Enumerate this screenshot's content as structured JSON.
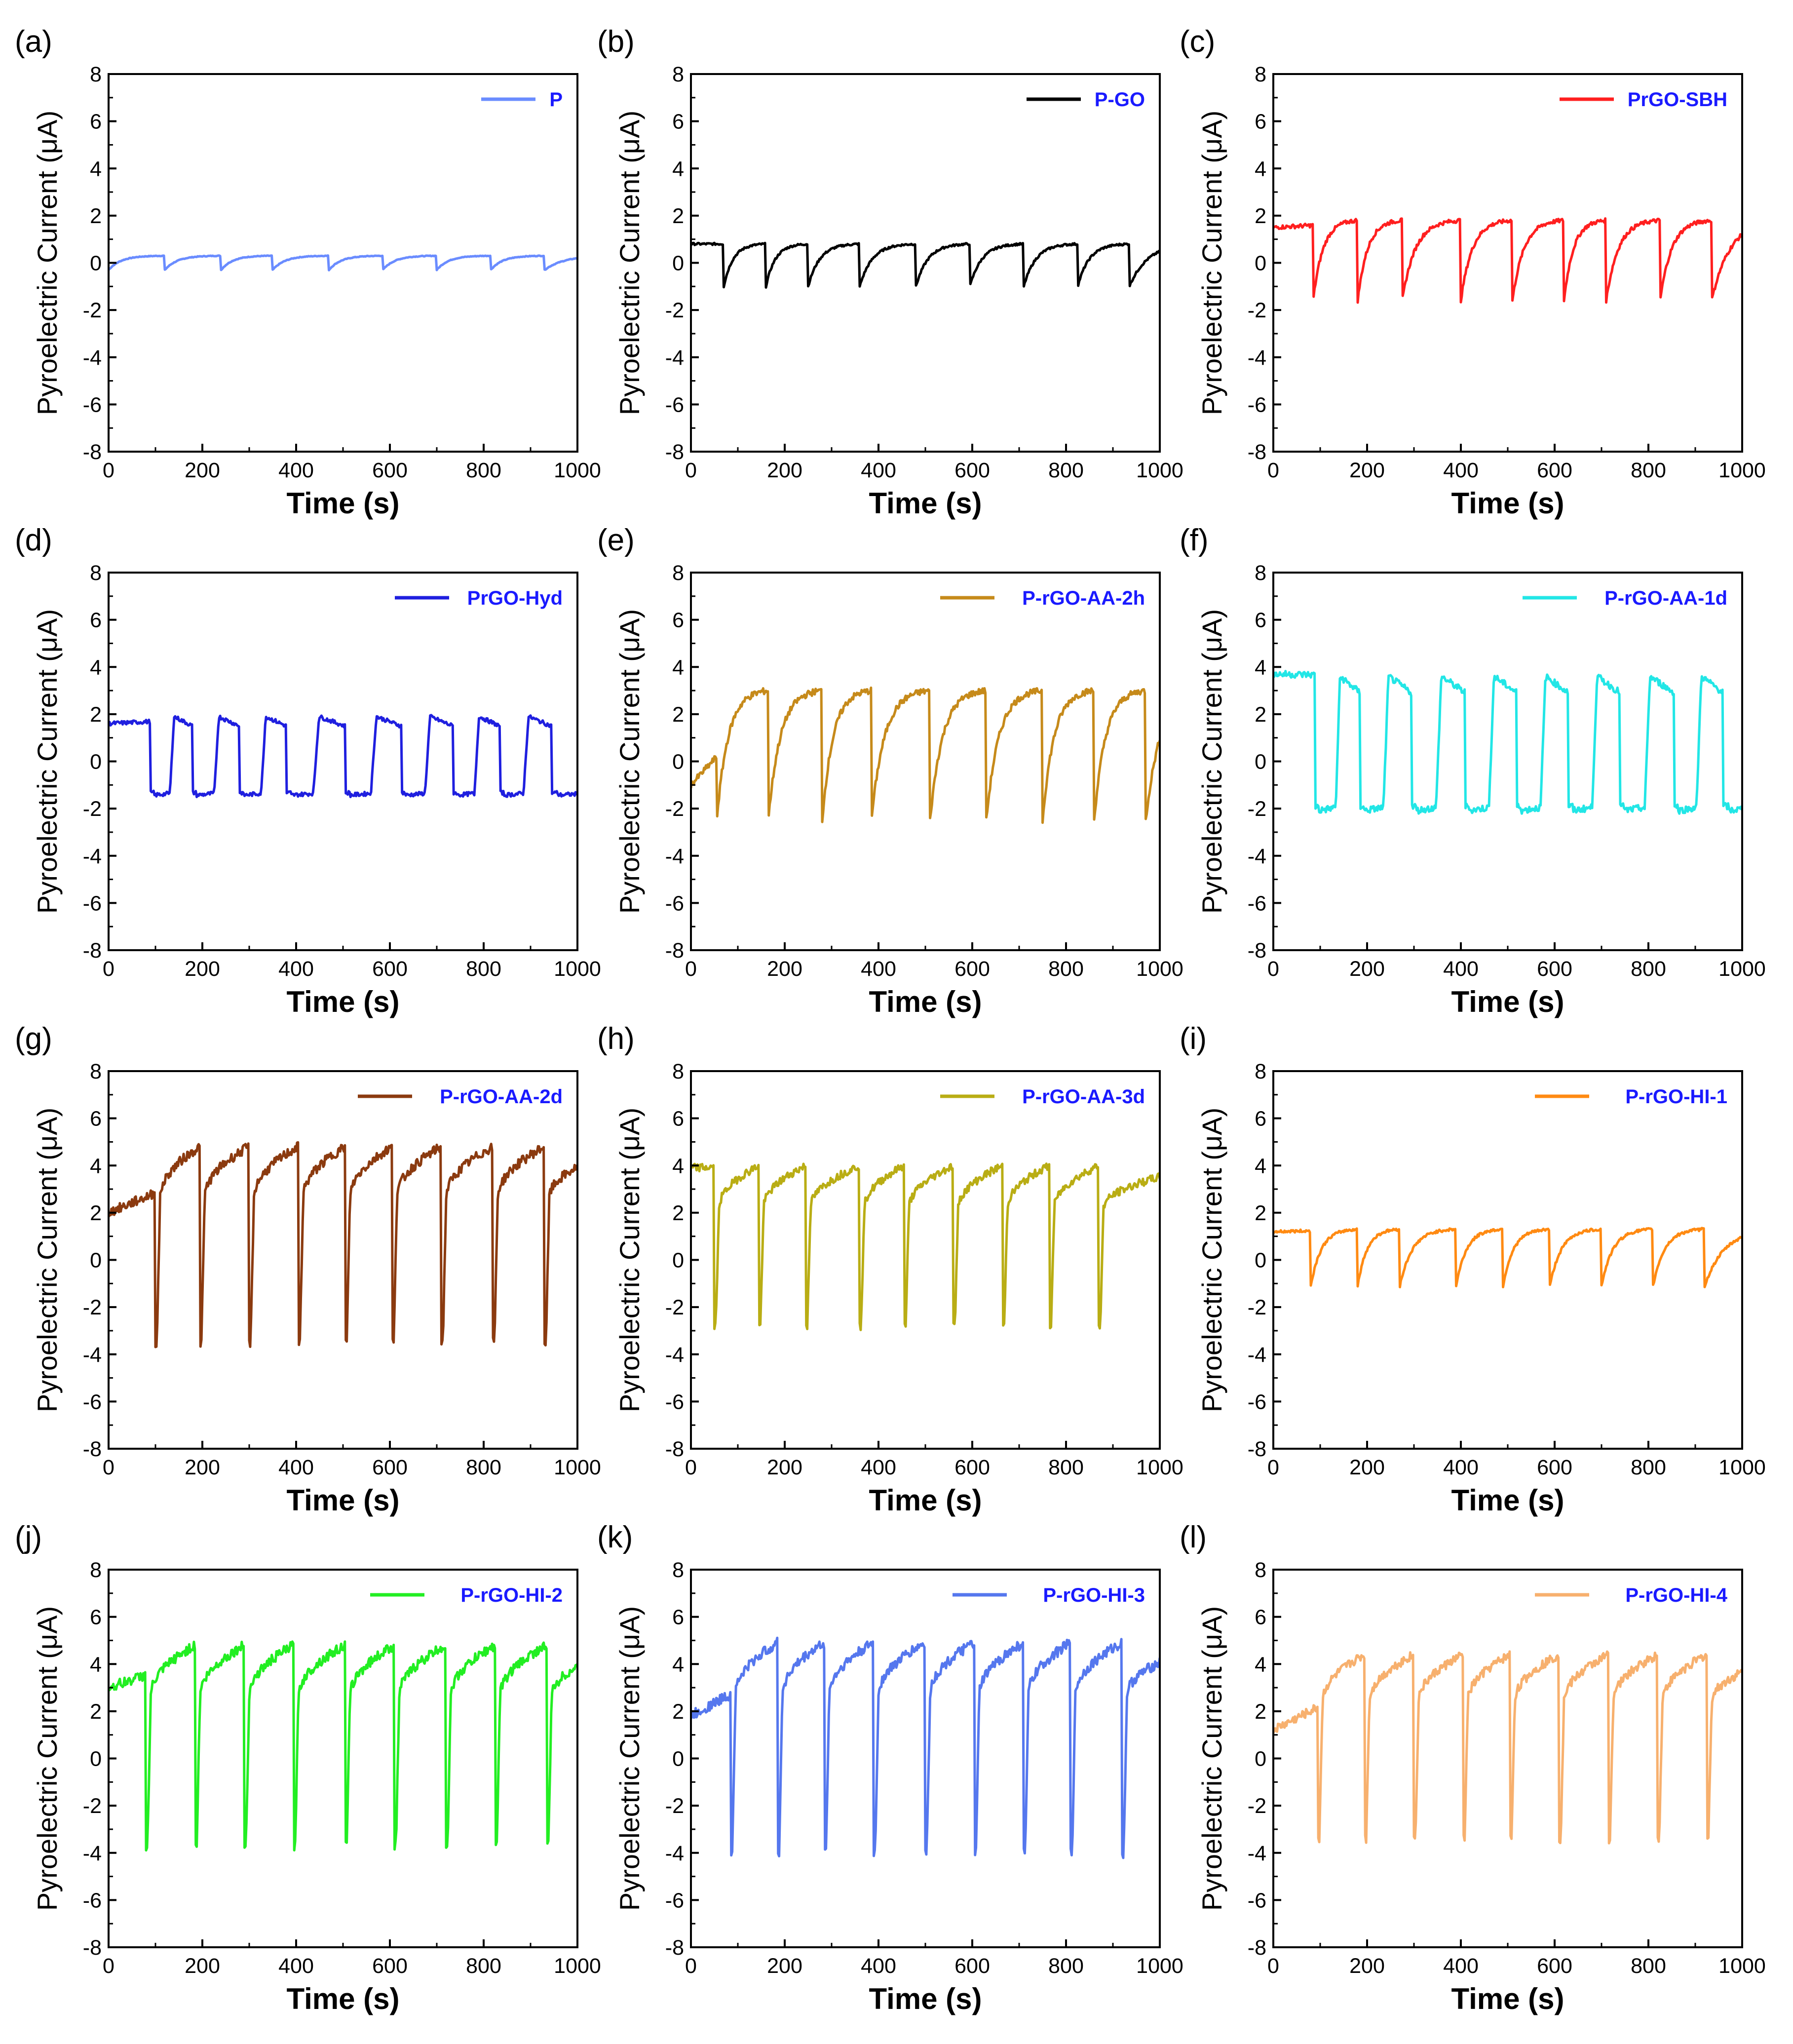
{
  "figure": {
    "x_axis_label": "Time (s)",
    "y_axis_label": "Pyroelectric Current (μA)",
    "x_ticks": [
      0,
      200,
      400,
      600,
      800,
      1000
    ],
    "y_ticks": [
      -8,
      -6,
      -4,
      -2,
      0,
      2,
      4,
      6,
      8
    ],
    "legend_text_color": "#1a1aff"
  },
  "chart_data": [
    {
      "panel": "(a)",
      "type": "line",
      "series_name": "P",
      "color": "#6a8cff",
      "xlim": [
        0,
        1000
      ],
      "ylim": [
        -8,
        8
      ],
      "xlabel": "Time (s)",
      "ylabel": "Pyroelectric Current (μA)",
      "peak_times": [
        0,
        120,
        240,
        350,
        470,
        585,
        700,
        815,
        930
      ],
      "high": 0.3,
      "low": -0.3,
      "start": 0.3,
      "shape": "saw"
    },
    {
      "panel": "(b)",
      "type": "line",
      "series_name": "P-GO",
      "color": "#000000",
      "xlim": [
        0,
        1000
      ],
      "ylim": [
        -8,
        8
      ],
      "xlabel": "Time (s)",
      "ylabel": "Pyroelectric Current (μA)",
      "peak_times": [
        70,
        160,
        250,
        360,
        480,
        595,
        710,
        825,
        935
      ],
      "high": 0.8,
      "low": -1.0,
      "start": 0.8,
      "shape": "saw"
    },
    {
      "panel": "(c)",
      "type": "line",
      "series_name": "PrGO-SBH",
      "color": "#ff1f1f",
      "xlim": [
        0,
        1000
      ],
      "ylim": [
        -8,
        8
      ],
      "xlabel": "Time (s)",
      "ylabel": "Pyroelectric Current (μA)",
      "peak_times": [
        85,
        180,
        275,
        400,
        510,
        620,
        710,
        825,
        935
      ],
      "high": 1.8,
      "low": -1.6,
      "start": 1.5,
      "shape": "saw"
    },
    {
      "panel": "(d)",
      "type": "line",
      "series_name": "PrGO-Hyd",
      "color": "#1f1fdf",
      "xlim": [
        0,
        1000
      ],
      "ylim": [
        -8,
        8
      ],
      "xlabel": "Time (s)",
      "ylabel": "Pyroelectric Current (μA)",
      "peak_times": [
        90,
        180,
        280,
        380,
        505,
        625,
        735,
        835,
        945
      ],
      "high": 1.9,
      "low": -1.5,
      "start": 1.6,
      "shape": "square"
    },
    {
      "panel": "(e)",
      "type": "line",
      "series_name": "P-rGO-AA-2h",
      "color": "#c68a1a",
      "xlim": [
        0,
        1000
      ],
      "ylim": [
        -8,
        8
      ],
      "xlabel": "Time (s)",
      "ylabel": "Pyroelectric Current (μA)",
      "peak_times": [
        55,
        165,
        280,
        385,
        510,
        630,
        750,
        860,
        970
      ],
      "high": 3.0,
      "low": -2.5,
      "start": -1.0,
      "shape": "saw"
    },
    {
      "panel": "(f)",
      "type": "line",
      "series_name": "P-rGO-AA-1d",
      "color": "#22e6e6",
      "xlim": [
        0,
        1000
      ],
      "ylim": [
        -8,
        8
      ],
      "xlabel": "Time (s)",
      "ylabel": "Pyroelectric Current (μA)",
      "peak_times": [
        90,
        185,
        295,
        410,
        520,
        630,
        740,
        855,
        960
      ],
      "high": 3.6,
      "low": -2.2,
      "start": 3.7,
      "shape": "square"
    },
    {
      "panel": "(g)",
      "type": "line",
      "series_name": "P-rGO-AA-2d",
      "color": "#8b3a0f",
      "xlim": [
        0,
        1000
      ],
      "ylim": [
        -8,
        8
      ],
      "xlabel": "Time (s)",
      "ylabel": "Pyroelectric Current (μA)",
      "peak_times": [
        100,
        195,
        300,
        405,
        505,
        605,
        710,
        820,
        930
      ],
      "high": 4.8,
      "low": -3.5,
      "start": 2.0,
      "shape": "spike"
    },
    {
      "panel": "(h)",
      "type": "line",
      "series_name": "P-rGO-AA-3d",
      "color": "#b9ad14",
      "xlim": [
        0,
        1000
      ],
      "ylim": [
        -8,
        8
      ],
      "xlabel": "Time (s)",
      "ylabel": "Pyroelectric Current (μA)",
      "peak_times": [
        50,
        145,
        245,
        360,
        455,
        560,
        665,
        765,
        870
      ],
      "high": 4.0,
      "low": -2.8,
      "start": 3.9,
      "shape": "spike"
    },
    {
      "panel": "(i)",
      "type": "line",
      "series_name": "P-rGO-HI-1",
      "color": "#ff8a12",
      "xlim": [
        0,
        1000
      ],
      "ylim": [
        -8,
        8
      ],
      "xlabel": "Time (s)",
      "ylabel": "Pyroelectric Current (μA)",
      "peak_times": [
        80,
        180,
        270,
        390,
        490,
        590,
        700,
        810,
        920
      ],
      "high": 1.3,
      "low": -1.1,
      "start": 1.2,
      "shape": "saw"
    },
    {
      "panel": "(j)",
      "type": "line",
      "series_name": "P-rGO-HI-2",
      "color": "#22ee22",
      "xlim": [
        0,
        1000
      ],
      "ylim": [
        -8,
        8
      ],
      "xlabel": "Time (s)",
      "ylabel": "Pyroelectric Current (μA)",
      "peak_times": [
        80,
        185,
        290,
        395,
        505,
        610,
        720,
        825,
        935
      ],
      "high": 4.8,
      "low": -3.7,
      "start": 3.0,
      "shape": "spike"
    },
    {
      "panel": "(k)",
      "type": "line",
      "series_name": "P-rGO-HI-3",
      "color": "#5577ee",
      "xlim": [
        0,
        1000
      ],
      "ylim": [
        -8,
        8
      ],
      "xlabel": "Time (s)",
      "ylabel": "Pyroelectric Current (μA)",
      "peak_times": [
        85,
        185,
        285,
        390,
        500,
        605,
        710,
        810,
        920
      ],
      "high": 4.9,
      "low": -4.0,
      "start": 1.8,
      "shape": "spike"
    },
    {
      "panel": "(l)",
      "type": "line",
      "series_name": "P-rGO-HI-4",
      "color": "#f7b06e",
      "xlim": [
        0,
        1000
      ],
      "ylim": [
        -8,
        8
      ],
      "xlabel": "Time (s)",
      "ylabel": "Pyroelectric Current (μA)",
      "peak_times": [
        95,
        195,
        300,
        405,
        505,
        610,
        715,
        820,
        925
      ],
      "high": 4.4,
      "low": -3.4,
      "start": 1.2,
      "shape": "spike"
    }
  ]
}
